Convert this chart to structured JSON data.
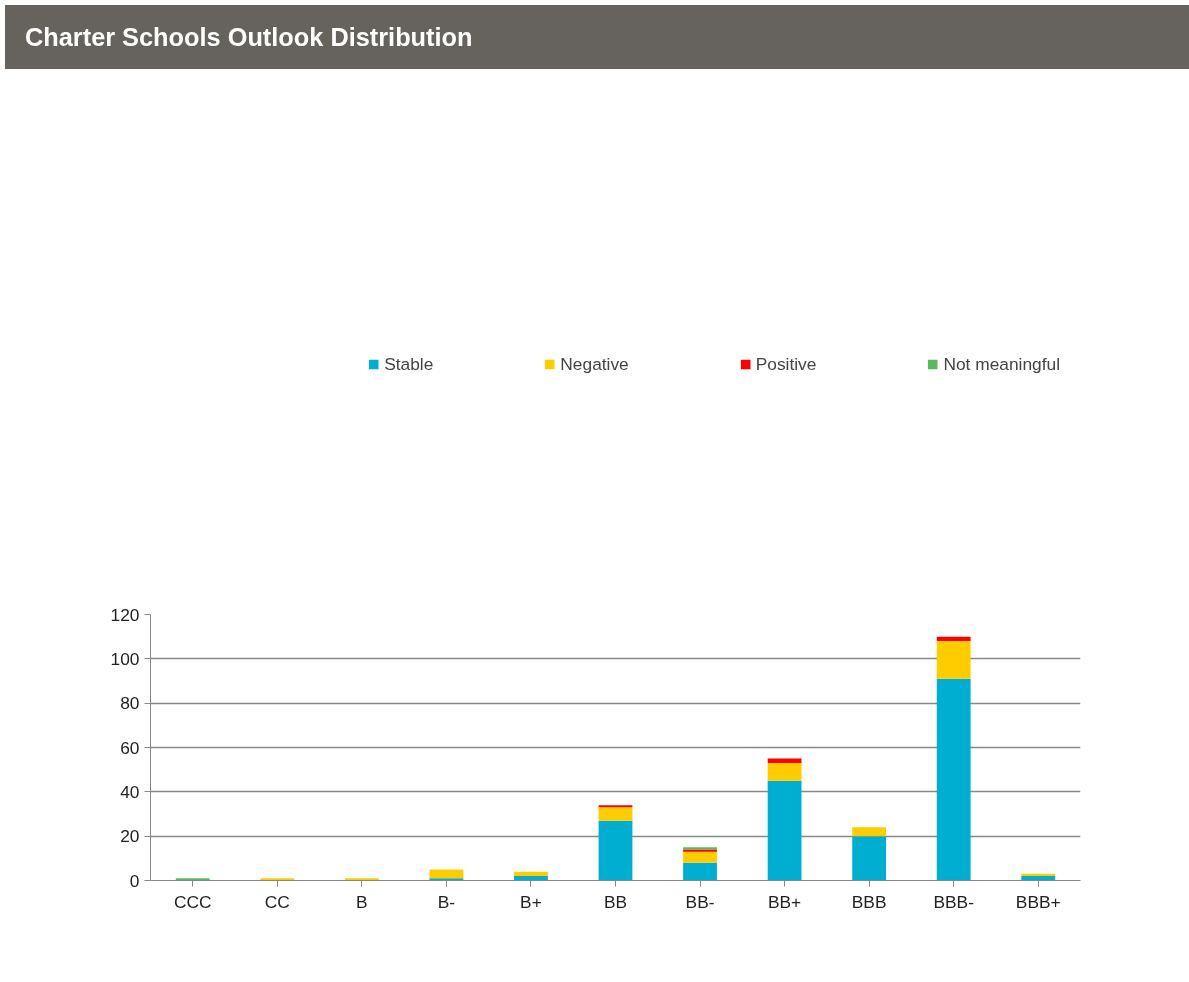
{
  "chart_data": {
    "type": "bar",
    "title": "Charter Schools Outlook Distribution",
    "stacked": true,
    "categories": [
      "CCC",
      "CC",
      "B",
      "B-",
      "B+",
      "BB",
      "BB-",
      "BB+",
      "BBB",
      "BBB-",
      "BBB+"
    ],
    "series": [
      {
        "name": "Stable",
        "color": "#00aed1",
        "values": [
          0,
          0,
          0,
          1,
          2,
          27,
          8,
          45,
          20,
          91,
          2
        ]
      },
      {
        "name": "Negative",
        "color": "#ffcc00",
        "values": [
          0,
          1,
          1,
          4,
          2,
          6,
          5,
          8,
          4,
          17,
          1
        ]
      },
      {
        "name": "Positive",
        "color": "#ff0000",
        "values": [
          0,
          0,
          0,
          0,
          0,
          1,
          1,
          2,
          0,
          2,
          0
        ]
      },
      {
        "name": "Not meaningful",
        "color": "#5cb85c",
        "values": [
          1,
          0,
          0,
          0,
          0,
          0,
          1,
          0,
          0,
          0,
          0
        ]
      }
    ],
    "ylim": [
      0,
      120
    ],
    "yticks": [
      0,
      20,
      40,
      60,
      80,
      100,
      120
    ],
    "grid": "y",
    "legend": "top"
  }
}
